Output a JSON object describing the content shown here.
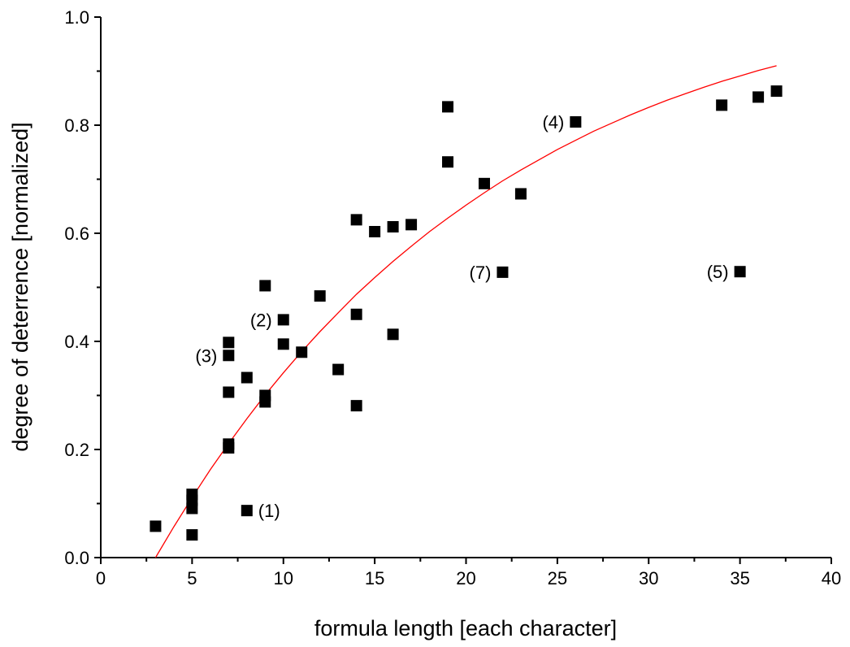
{
  "chart_data": {
    "type": "scatter",
    "xlabel": "formula length [each character]",
    "ylabel": "degree of deterrence [normalized]",
    "xlim": [
      0,
      40
    ],
    "ylim": [
      0,
      1.0
    ],
    "x_ticks": [
      0,
      5,
      10,
      15,
      20,
      25,
      30,
      35,
      40
    ],
    "y_ticks": [
      0.0,
      0.2,
      0.4,
      0.6,
      0.8,
      1.0
    ],
    "x_tick_labels": [
      "0",
      "5",
      "10",
      "15",
      "20",
      "25",
      "30",
      "35",
      "40"
    ],
    "y_tick_labels": [
      "0.0",
      "0.2",
      "0.4",
      "0.6",
      "0.8",
      "1.0"
    ],
    "grid": false,
    "marker_color": "#000000",
    "fit_color": "#ff0000",
    "points": [
      {
        "x": 3,
        "y": 0.058
      },
      {
        "x": 5,
        "y": 0.117
      },
      {
        "x": 5,
        "y": 0.106
      },
      {
        "x": 5,
        "y": 0.091
      },
      {
        "x": 5,
        "y": 0.042
      },
      {
        "x": 7,
        "y": 0.398
      },
      {
        "x": 7,
        "y": 0.374
      },
      {
        "x": 7,
        "y": 0.306
      },
      {
        "x": 7,
        "y": 0.21
      },
      {
        "x": 7,
        "y": 0.203
      },
      {
        "x": 8,
        "y": 0.333
      },
      {
        "x": 8,
        "y": 0.087
      },
      {
        "x": 9,
        "y": 0.503
      },
      {
        "x": 9,
        "y": 0.3
      },
      {
        "x": 9,
        "y": 0.288
      },
      {
        "x": 10,
        "y": 0.44
      },
      {
        "x": 10,
        "y": 0.395
      },
      {
        "x": 11,
        "y": 0.38
      },
      {
        "x": 12,
        "y": 0.484
      },
      {
        "x": 13,
        "y": 0.348
      },
      {
        "x": 14,
        "y": 0.625
      },
      {
        "x": 14,
        "y": 0.45
      },
      {
        "x": 14,
        "y": 0.281
      },
      {
        "x": 15,
        "y": 0.603
      },
      {
        "x": 16,
        "y": 0.612
      },
      {
        "x": 16,
        "y": 0.413
      },
      {
        "x": 17,
        "y": 0.616
      },
      {
        "x": 19,
        "y": 0.834
      },
      {
        "x": 19,
        "y": 0.732
      },
      {
        "x": 21,
        "y": 0.692
      },
      {
        "x": 22,
        "y": 0.528
      },
      {
        "x": 23,
        "y": 0.673
      },
      {
        "x": 26,
        "y": 0.806
      },
      {
        "x": 34,
        "y": 0.837
      },
      {
        "x": 35,
        "y": 0.529
      },
      {
        "x": 36,
        "y": 0.852
      },
      {
        "x": 37,
        "y": 0.863
      }
    ],
    "fit_curve": {
      "x": [
        3,
        4,
        5,
        6,
        7,
        8,
        9,
        10,
        11,
        12,
        13,
        14,
        15,
        16,
        17,
        18,
        19,
        20,
        21,
        22,
        23,
        24,
        25,
        26,
        27,
        28,
        29,
        30,
        31,
        32,
        33,
        34,
        35,
        36,
        37
      ],
      "y": [
        0.0,
        0.057,
        0.111,
        0.163,
        0.211,
        0.257,
        0.301,
        0.342,
        0.381,
        0.418,
        0.453,
        0.487,
        0.518,
        0.548,
        0.576,
        0.603,
        0.628,
        0.652,
        0.675,
        0.697,
        0.717,
        0.736,
        0.755,
        0.772,
        0.789,
        0.804,
        0.819,
        0.833,
        0.846,
        0.858,
        0.87,
        0.881,
        0.891,
        0.901,
        0.91
      ]
    },
    "annotations": [
      {
        "text": "(1)",
        "x": 8,
        "y": 0.087,
        "side": "right"
      },
      {
        "text": "(2)",
        "x": 10,
        "y": 0.44,
        "side": "left"
      },
      {
        "text": "(3)",
        "x": 7,
        "y": 0.374,
        "side": "left"
      },
      {
        "text": "(4)",
        "x": 26,
        "y": 0.806,
        "side": "left"
      },
      {
        "text": "(5)",
        "x": 35,
        "y": 0.529,
        "side": "left"
      },
      {
        "text": "(7)",
        "x": 22,
        "y": 0.528,
        "side": "left"
      }
    ]
  }
}
